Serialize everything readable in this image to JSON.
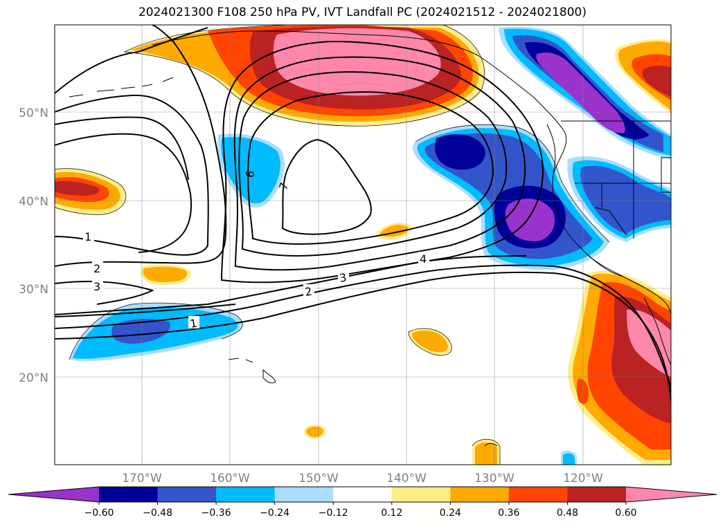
{
  "title": "2024021300 F108 250 hPa PV, IVT Landfall PC (2024021512 - 2024021800)",
  "lat_labels": [
    "50°N",
    "40°N",
    "30°N",
    "20°N"
  ],
  "lon_labels": [
    "170°W",
    "160°W",
    "150°W",
    "140°W",
    "130°W",
    "120°W"
  ],
  "colorbar": {
    "ticks": [
      "-0.60",
      "-0.48",
      "-0.36",
      "-0.24",
      "-0.12",
      "0.12",
      "0.24",
      "0.36",
      "0.48",
      "0.60"
    ],
    "colors": [
      "#9933cc",
      "#000099",
      "#3355cc",
      "#00bbff",
      "#aaddff",
      "#ffffff",
      "#ffee88",
      "#ffaa00",
      "#ff4400",
      "#bb2222",
      "#ff88aa"
    ]
  },
  "pv_contour_labels": [
    "1",
    "2",
    "3",
    "4",
    "6",
    "7",
    "1",
    "2",
    "3"
  ],
  "colors": {
    "purple": "#9933cc",
    "navy": "#000099",
    "blue": "#3355cc",
    "cyan": "#00bbff",
    "lightblue": "#aaddff",
    "yellow": "#ffee88",
    "orange": "#ffaa00",
    "red": "#ff4400",
    "darkred": "#bb2222",
    "pink": "#ff88aa"
  }
}
